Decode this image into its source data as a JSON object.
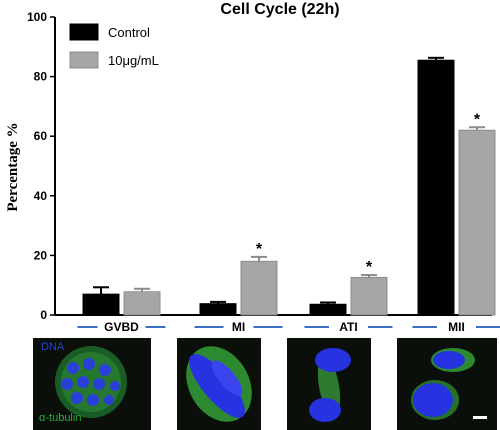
{
  "chart_data": {
    "type": "bar",
    "title": "Cell Cycle (22h)",
    "ylabel": "Percentage %",
    "xlabel": "",
    "ylim": [
      0,
      100
    ],
    "yticks": [
      0,
      20,
      40,
      60,
      80,
      100
    ],
    "categories": [
      "GVBD",
      "MI",
      "ATI",
      "MII"
    ],
    "series": [
      {
        "name": "Control",
        "values": [
          7,
          3.8,
          3.6,
          85.5
        ],
        "errors": [
          2.3,
          0.6,
          0.6,
          0.8
        ],
        "color": "#000000"
      },
      {
        "name": "10μg/mL",
        "values": [
          7.8,
          18,
          12.6,
          62
        ],
        "errors": [
          1.0,
          1.5,
          0.8,
          1.0
        ],
        "color": "#a6a6a6"
      }
    ],
    "significance_marks": [
      "",
      "*",
      "*",
      "*"
    ],
    "legend_position": "top-left",
    "grid": false,
    "category_underline_color": "#3a6fc4"
  },
  "panels": {
    "dna_label": "DNA",
    "tubulin_label": "α-tubulin"
  }
}
